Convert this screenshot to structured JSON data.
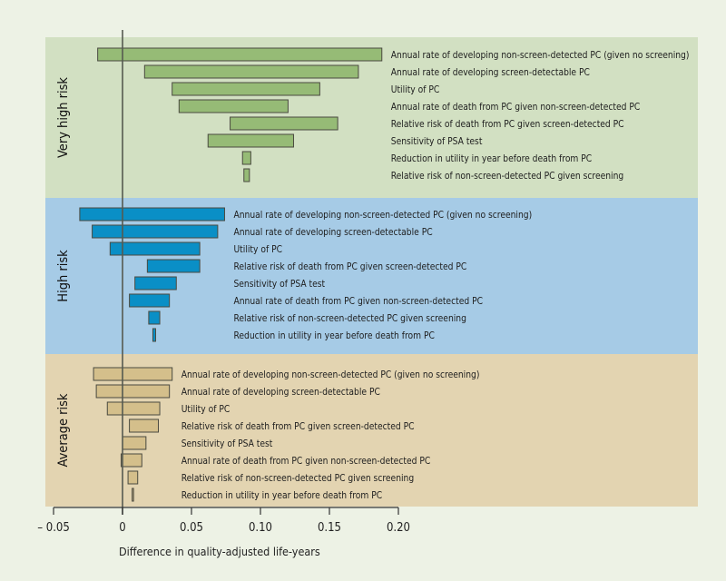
{
  "chart_data": {
    "type": "bar",
    "subtype": "tornado",
    "orientation": "horizontal",
    "xlabel": "Difference in quality-adjusted life-years",
    "xlim": [
      -0.05,
      0.2
    ],
    "xticks": [
      -0.05,
      0,
      0.05,
      0.1,
      0.15,
      0.2
    ],
    "xtick_labels": [
      "– 0.05",
      "0",
      "0.05",
      "0.10",
      "0.15",
      "0.20"
    ],
    "reference_line": 0,
    "grid": false,
    "legend": "none",
    "panels": [
      {
        "name": "Very high risk",
        "background": "#d2e0c2",
        "bar_color": "#96bb76",
        "bars": [
          {
            "label": "Annual rate of developing non-screen-detected PC (given no screening)",
            "low": -0.018,
            "high": 0.188
          },
          {
            "label": "Annual rate of developing screen-detectable PC",
            "low": 0.016,
            "high": 0.171
          },
          {
            "label": "Utility of PC",
            "low": 0.036,
            "high": 0.143
          },
          {
            "label": "Annual rate of death from PC given non-screen-detected PC",
            "low": 0.041,
            "high": 0.12
          },
          {
            "label": "Relative risk of death from PC given screen-detected PC",
            "low": 0.078,
            "high": 0.156
          },
          {
            "label": "Sensitivity of PSA test",
            "low": 0.062,
            "high": 0.124
          },
          {
            "label": "Reduction in utility in year before death from PC",
            "low": 0.087,
            "high": 0.093
          },
          {
            "label": "Relative risk of non-screen-detected PC given screening",
            "low": 0.088,
            "high": 0.092
          }
        ]
      },
      {
        "name": "High risk",
        "background": "#a6cbe6",
        "bar_color": "#0a8fc6",
        "bars": [
          {
            "label": "Annual rate of developing non-screen-detected PC (given no screening)",
            "low": -0.031,
            "high": 0.074
          },
          {
            "label": "Annual rate of developing screen-detectable PC",
            "low": -0.022,
            "high": 0.069
          },
          {
            "label": "Utility of PC",
            "low": -0.009,
            "high": 0.056
          },
          {
            "label": "Relative risk of death from PC given screen-detected PC",
            "low": 0.018,
            "high": 0.056
          },
          {
            "label": "Sensitivity of PSA test",
            "low": 0.009,
            "high": 0.039
          },
          {
            "label": "Annual rate of death from PC given non-screen-detected PC",
            "low": 0.005,
            "high": 0.034
          },
          {
            "label": "Relative risk of non-screen-detected PC given screening",
            "low": 0.019,
            "high": 0.027
          },
          {
            "label": "Reduction in utility in year before death from PC",
            "low": 0.022,
            "high": 0.024
          }
        ]
      },
      {
        "name": "Average risk",
        "background": "#e3d4b1",
        "bar_color": "#d4bf8b",
        "bars": [
          {
            "label": "Annual rate of developing non-screen-detected PC (given no screening)",
            "low": -0.021,
            "high": 0.036
          },
          {
            "label": "Annual rate of developing screen-detectable PC",
            "low": -0.019,
            "high": 0.034
          },
          {
            "label": "Utility of PC",
            "low": -0.011,
            "high": 0.027
          },
          {
            "label": "Relative risk of death from PC given screen-detected PC",
            "low": 0.005,
            "high": 0.026
          },
          {
            "label": "Sensitivity of PSA test",
            "low": 0.0,
            "high": 0.017
          },
          {
            "label": "Annual rate of death from PC given non-screen-detected PC",
            "low": -0.001,
            "high": 0.014
          },
          {
            "label": "Relative risk of non-screen-detected PC given screening",
            "low": 0.004,
            "high": 0.011
          },
          {
            "label": "Reduction in utility in year before death from PC",
            "low": 0.007,
            "high": 0.008
          }
        ]
      }
    ]
  },
  "colors": {
    "page_background": "#edf2e5",
    "axis": "#333333",
    "bar_stroke": "#4a4a40"
  }
}
